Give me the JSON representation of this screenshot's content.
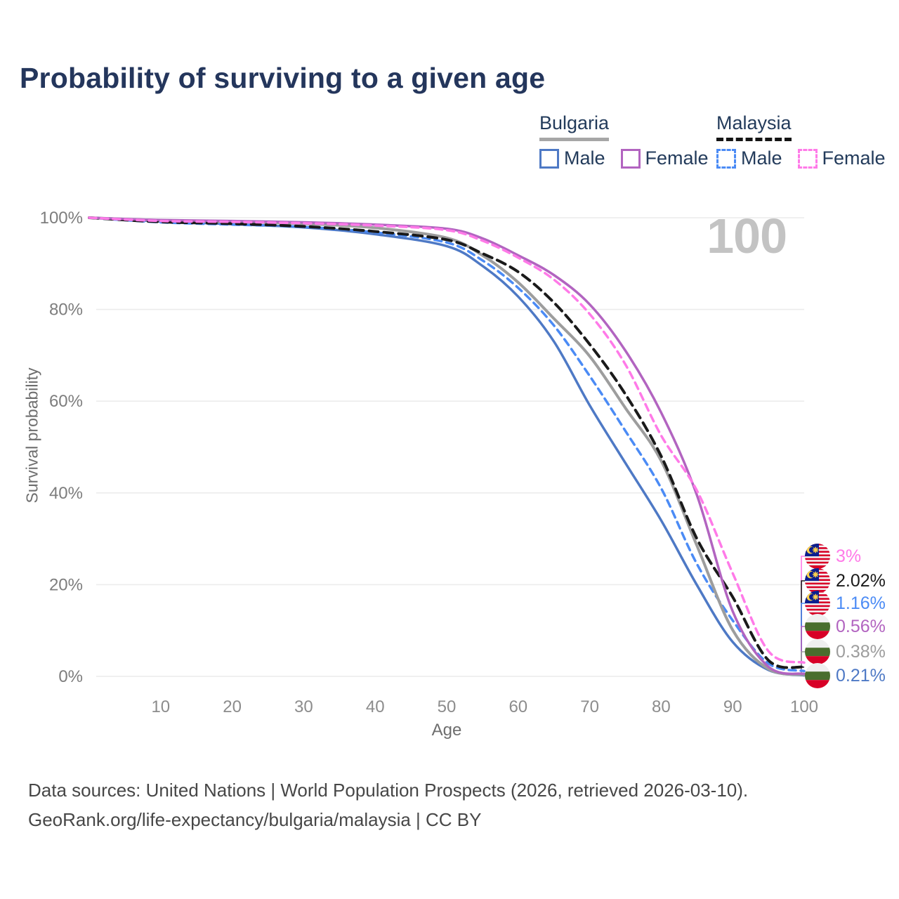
{
  "header": {
    "title": "Probability of surviving to a given age"
  },
  "legend": {
    "groups": [
      {
        "label": "Bulgaria",
        "style": "solid",
        "underline_color": "#a6a6a6",
        "items": [
          {
            "label": "Male",
            "color": "#4e79c5",
            "dashed": false
          },
          {
            "label": "Female",
            "color": "#b264c0",
            "dashed": false
          }
        ]
      },
      {
        "label": "Malaysia",
        "style": "dashed",
        "underline_color": "#151515",
        "items": [
          {
            "label": "Male",
            "color": "#4b8bf5",
            "dashed": true
          },
          {
            "label": "Female",
            "color": "#ff7ae8",
            "dashed": true
          }
        ]
      }
    ]
  },
  "chart_data": {
    "type": "line",
    "title": "Probability of surviving to a given age",
    "xlabel": "Age",
    "ylabel": "Survival probability",
    "watermark": "100",
    "grid": "horizontal",
    "xlim": [
      0,
      100
    ],
    "ylim": [
      0,
      100
    ],
    "xticks": [
      10,
      20,
      30,
      40,
      50,
      60,
      70,
      80,
      90,
      100
    ],
    "yticks": [
      0,
      20,
      40,
      60,
      80,
      100
    ],
    "ytick_suffix": "%",
    "x": [
      0,
      10,
      20,
      30,
      40,
      50,
      55,
      60,
      65,
      70,
      75,
      80,
      85,
      90,
      95,
      100
    ],
    "series": [
      {
        "name": "Bulgaria — Male",
        "country": "Bulgaria",
        "sex": "Male",
        "color": "#4e79c5",
        "dash": "",
        "width": 3.5,
        "values": [
          100,
          99.2,
          98.6,
          97.9,
          96.4,
          93.8,
          89.5,
          82.8,
          73.0,
          59.1,
          46.5,
          34.0,
          19.9,
          7.5,
          1.4,
          0.21
        ]
      },
      {
        "name": "Malaysia — Male",
        "country": "Malaysia",
        "sex": "Male",
        "color": "#4b8bf5",
        "dash": "10 7",
        "width": 3.5,
        "values": [
          100,
          99.0,
          98.5,
          98.0,
          96.8,
          94.6,
          90.7,
          84.7,
          76.5,
          65.5,
          53.5,
          41.0,
          24.5,
          12.2,
          2.8,
          1.16
        ]
      },
      {
        "name": "Bulgaria — Both sexes",
        "country": "Bulgaria",
        "sex": "Both",
        "color": "#9d9d9d",
        "dash": "",
        "width": 4,
        "values": [
          100,
          99.4,
          99.1,
          98.7,
          97.8,
          95.6,
          91.8,
          85.9,
          78.0,
          69.8,
          58.5,
          47.0,
          28.5,
          10.1,
          1.6,
          0.38
        ]
      },
      {
        "name": "Malaysia — Both sexes",
        "country": "Malaysia",
        "sex": "Both",
        "color": "#1a1a1a",
        "dash": "13 8",
        "width": 4,
        "values": [
          100,
          99.1,
          98.7,
          98.1,
          97.0,
          95.2,
          92.2,
          88.2,
          81.5,
          72.4,
          61.5,
          48.0,
          30.0,
          17.3,
          3.5,
          2.02
        ]
      },
      {
        "name": "Bulgaria — Female",
        "country": "Bulgaria",
        "sex": "Female",
        "color": "#b264c0",
        "dash": "",
        "width": 3.5,
        "values": [
          100,
          99.5,
          99.3,
          99.0,
          98.5,
          97.6,
          95.5,
          91.8,
          87.5,
          81.1,
          71.0,
          57.5,
          39.5,
          14.2,
          2.1,
          0.56
        ]
      },
      {
        "name": "Malaysia — Female",
        "country": "Malaysia",
        "sex": "Female",
        "color": "#ff7ae8",
        "dash": "10 7",
        "width": 3.5,
        "values": [
          100,
          99.3,
          99.1,
          98.8,
          98.3,
          97.3,
          95.0,
          91.3,
          86.5,
          79.0,
          68.0,
          52.5,
          40.5,
          22.5,
          5.5,
          3.0
        ]
      }
    ],
    "end_labels": [
      {
        "text": "3%",
        "value": 3.0,
        "color": "#ff7ae8",
        "flag": "malaysia"
      },
      {
        "text": "2.02%",
        "value": 2.02,
        "color": "#1a1a1a",
        "flag": "malaysia"
      },
      {
        "text": "1.16%",
        "value": 1.16,
        "color": "#4b8bf5",
        "flag": "malaysia"
      },
      {
        "text": "0.56%",
        "value": 0.56,
        "color": "#b264c0",
        "flag": "bulgaria"
      },
      {
        "text": "0.38%",
        "value": 0.38,
        "color": "#9d9d9d",
        "flag": "bulgaria"
      },
      {
        "text": "0.21%",
        "value": 0.21,
        "color": "#4e79c5",
        "flag": "bulgaria"
      }
    ]
  },
  "footer": {
    "line1": "Data sources: United Nations | World Population Prospects (2026, retrieved 2026-03-10).",
    "line2": "GeoRank.org/life-expectancy/bulgaria/malaysia | CC BY"
  }
}
